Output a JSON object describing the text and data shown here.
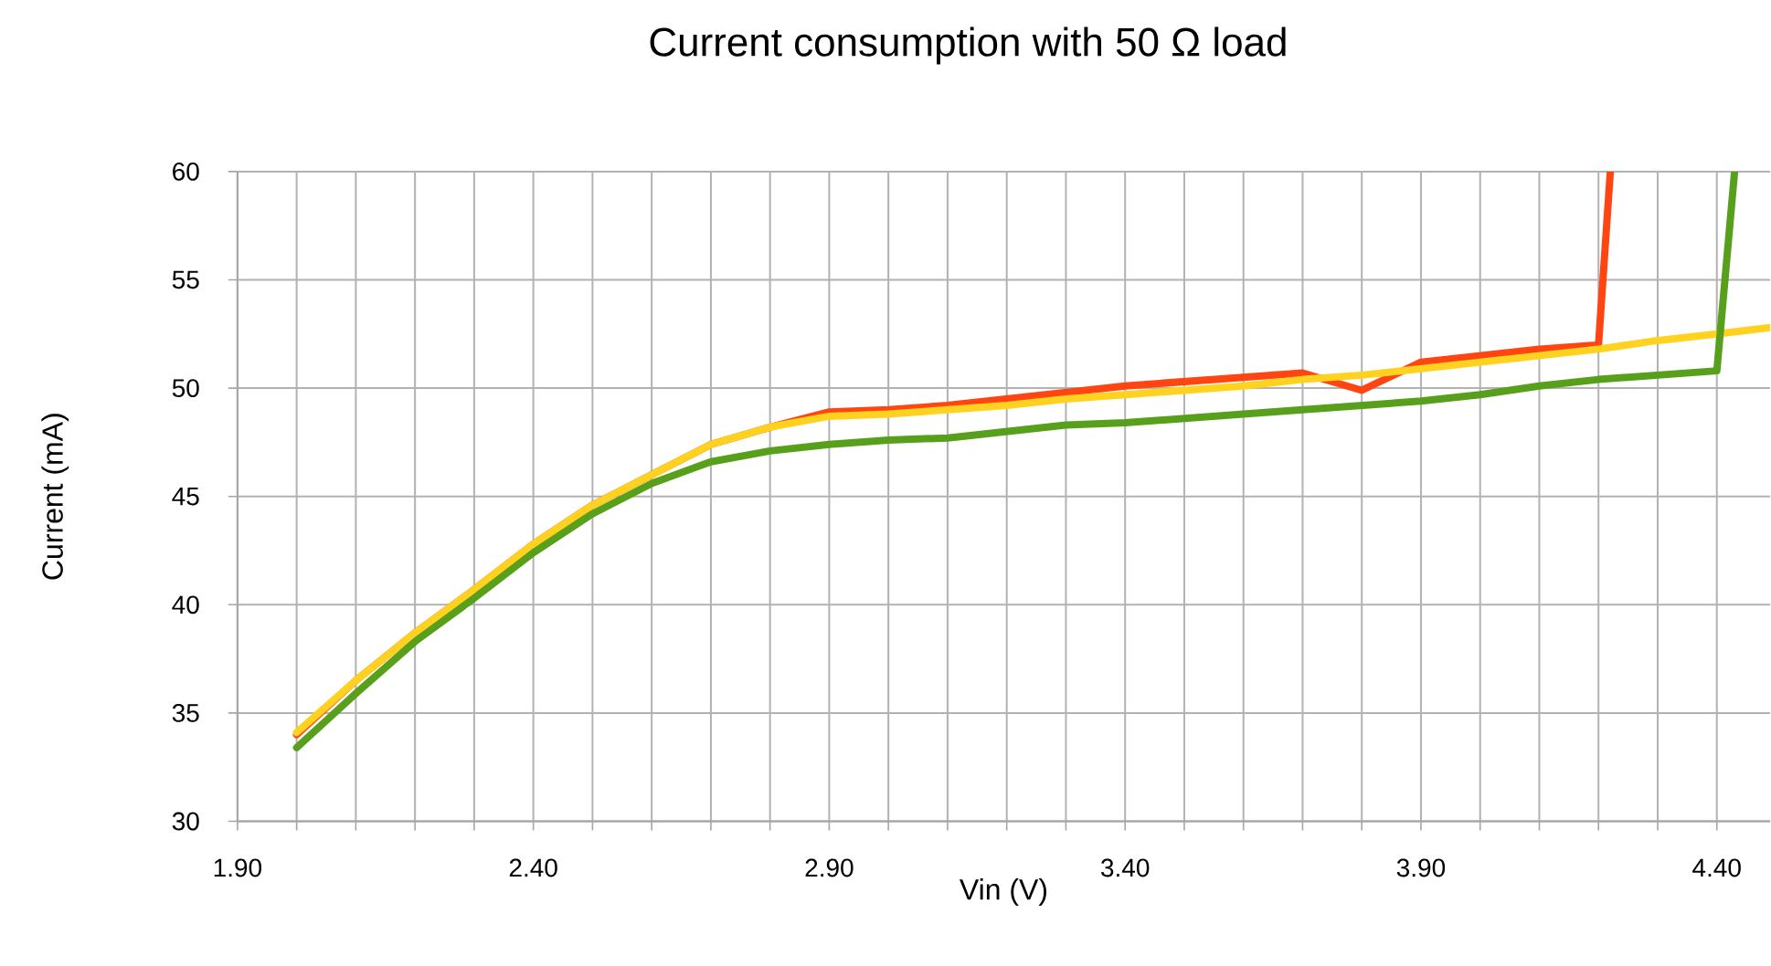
{
  "chart_data": {
    "type": "line",
    "title": "Current consumption with 50 Ω load",
    "xlabel": "Vin (V)",
    "ylabel": "Current (mA)",
    "xlim": [
      1.9,
      4.49
    ],
    "ylim": [
      30,
      60
    ],
    "xticks": [
      {
        "value": 1.9,
        "label": "1.90"
      },
      {
        "value": 2.0,
        "label": null
      },
      {
        "value": 2.1,
        "label": null
      },
      {
        "value": 2.2,
        "label": null
      },
      {
        "value": 2.3,
        "label": null
      },
      {
        "value": 2.4,
        "label": "2.40"
      },
      {
        "value": 2.5,
        "label": null
      },
      {
        "value": 2.6,
        "label": null
      },
      {
        "value": 2.7,
        "label": null
      },
      {
        "value": 2.8,
        "label": null
      },
      {
        "value": 2.9,
        "label": "2.90"
      },
      {
        "value": 3.0,
        "label": null
      },
      {
        "value": 3.1,
        "label": null
      },
      {
        "value": 3.2,
        "label": null
      },
      {
        "value": 3.3,
        "label": null
      },
      {
        "value": 3.4,
        "label": "3.40"
      },
      {
        "value": 3.5,
        "label": null
      },
      {
        "value": 3.6,
        "label": null
      },
      {
        "value": 3.7,
        "label": null
      },
      {
        "value": 3.8,
        "label": null
      },
      {
        "value": 3.9,
        "label": "3.90"
      },
      {
        "value": 4.0,
        "label": null
      },
      {
        "value": 4.1,
        "label": null
      },
      {
        "value": 4.2,
        "label": null
      },
      {
        "value": 4.3,
        "label": null
      },
      {
        "value": 4.4,
        "label": "4.40"
      }
    ],
    "yticks": [
      30,
      35,
      40,
      45,
      50,
      55,
      60
    ],
    "grid": true,
    "marker": "none",
    "line_style": "solid",
    "series": [
      {
        "color": "#ff4512",
        "x": [
          2.0,
          2.1,
          2.2,
          2.3,
          2.4,
          2.5,
          2.6,
          2.7,
          2.8,
          2.9,
          3.0,
          3.1,
          3.2,
          3.3,
          3.4,
          3.5,
          3.6,
          3.7,
          3.8,
          3.9,
          4.0,
          4.1,
          4.2,
          4.22
        ],
        "values": [
          34.0,
          36.5,
          38.7,
          40.7,
          42.8,
          44.6,
          46.0,
          47.4,
          48.2,
          48.9,
          49.0,
          49.2,
          49.5,
          49.8,
          50.1,
          50.3,
          50.5,
          50.7,
          49.9,
          51.2,
          51.5,
          51.8,
          52.0,
          60
        ]
      },
      {
        "color": "#ffd21f",
        "x": [
          2.0,
          2.1,
          2.2,
          2.3,
          2.4,
          2.5,
          2.6,
          2.7,
          2.8,
          2.9,
          3.0,
          3.1,
          3.2,
          3.3,
          3.4,
          3.5,
          3.6,
          3.7,
          3.8,
          3.9,
          4.0,
          4.1,
          4.2,
          4.3,
          4.4,
          4.49
        ],
        "values": [
          34.1,
          36.5,
          38.7,
          40.7,
          42.8,
          44.6,
          46.0,
          47.4,
          48.2,
          48.7,
          48.8,
          49.0,
          49.2,
          49.5,
          49.7,
          49.9,
          50.1,
          50.4,
          50.6,
          50.9,
          51.2,
          51.5,
          51.8,
          52.2,
          52.5,
          52.8
        ]
      },
      {
        "color": "#58a01c",
        "x": [
          2.0,
          2.1,
          2.2,
          2.3,
          2.4,
          2.5,
          2.6,
          2.7,
          2.8,
          2.9,
          3.0,
          3.1,
          3.2,
          3.3,
          3.4,
          3.5,
          3.6,
          3.7,
          3.8,
          3.9,
          4.0,
          4.1,
          4.2,
          4.3,
          4.4,
          4.43
        ],
        "values": [
          33.4,
          35.9,
          38.3,
          40.3,
          42.4,
          44.2,
          45.6,
          46.6,
          47.1,
          47.4,
          47.6,
          47.7,
          48.0,
          48.3,
          48.4,
          48.6,
          48.8,
          49.0,
          49.2,
          49.4,
          49.7,
          50.1,
          50.4,
          50.6,
          50.8,
          60
        ]
      }
    ]
  }
}
